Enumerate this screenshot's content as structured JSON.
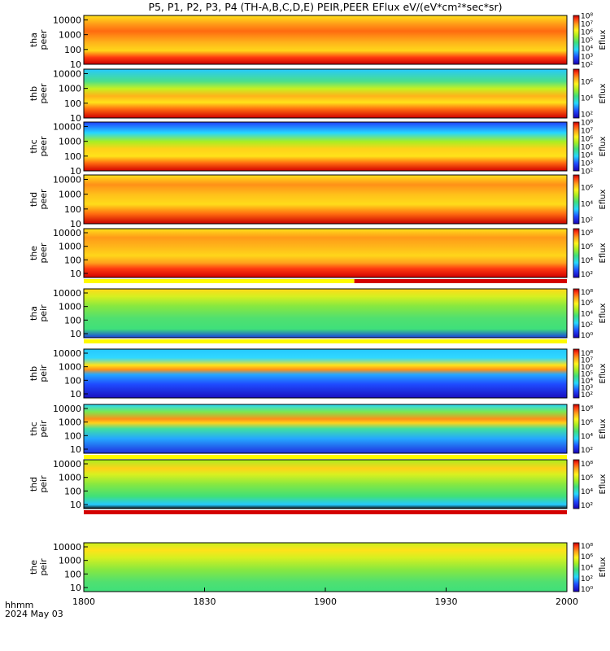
{
  "title": "P5, P1, P2, P3, P4 (TH-A,B,C,D,E) PEIR,PEER EFlux eV/(eV*cm²*sec*sr)",
  "footer": {
    "time_label": "hhmm",
    "date_label": "2024 May 03"
  },
  "chart_data": {
    "type": "heatmap",
    "x_axis": {
      "range": [
        1800,
        2000
      ],
      "ticks": [
        "1800",
        "1830",
        "1900",
        "1930",
        "2000"
      ]
    },
    "y_scale": "log",
    "panels": [
      {
        "probe": "tha",
        "species": "peer",
        "ylabels": [
          "10000",
          "1000",
          "100",
          "10"
        ],
        "ylim": [
          10,
          20000
        ],
        "cbar_label": "Eflux",
        "cbar_ticks": [
          "10⁸",
          "10⁷",
          "10⁶",
          "10⁵",
          "10⁴",
          "10³",
          "10²"
        ],
        "cbar_range": [
          2,
          8
        ],
        "below_bar": []
      },
      {
        "probe": "thb",
        "species": "peer",
        "ylabels": [
          "10000",
          "1000",
          "100",
          "10"
        ],
        "ylim": [
          10,
          20000
        ],
        "cbar_label": "Eflux",
        "cbar_ticks": [
          "10⁶",
          "10⁴",
          "10²"
        ],
        "cbar_range": [
          1.5,
          7.5
        ],
        "below_bar": []
      },
      {
        "probe": "thc",
        "species": "peer",
        "ylabels": [
          "10000",
          "1000",
          "100",
          "10"
        ],
        "ylim": [
          10,
          20000
        ],
        "cbar_label": "Eflux",
        "cbar_ticks": [
          "10⁸",
          "10⁷",
          "10⁶",
          "10⁵",
          "10⁴",
          "10³",
          "10²"
        ],
        "cbar_range": [
          2,
          8
        ],
        "below_bar": []
      },
      {
        "probe": "thd",
        "species": "peer",
        "ylabels": [
          "10000",
          "1000",
          "100",
          "10"
        ],
        "ylim": [
          10,
          20000
        ],
        "cbar_label": "Eflux",
        "cbar_ticks": [
          "10⁶",
          "10⁴",
          "10²"
        ],
        "cbar_range": [
          1.5,
          7.5
        ],
        "below_bar": []
      },
      {
        "probe": "the",
        "species": "peer",
        "ylabels": [
          "10000",
          "1000",
          "100",
          "10"
        ],
        "ylim": [
          5,
          20000
        ],
        "cbar_label": "Eflux",
        "cbar_ticks": [
          "10⁸",
          "10⁶",
          "10⁴",
          "10²"
        ],
        "cbar_range": [
          1.5,
          8.5
        ],
        "below_bar": [
          {
            "from": 1800,
            "to": 1912,
            "color": "#fffa00"
          },
          {
            "from": 1912,
            "to": 2000,
            "color": "#d40000"
          }
        ]
      },
      {
        "probe": "tha",
        "species": "peir",
        "ylabels": [
          "10000",
          "1000",
          "100",
          "10"
        ],
        "ylim": [
          5,
          20000
        ],
        "cbar_label": "Eflux",
        "cbar_ticks": [
          "10⁸",
          "10⁶",
          "10⁴",
          "10²",
          "10⁰"
        ],
        "cbar_range": [
          -0.5,
          8.5
        ],
        "below_bar": [
          {
            "from": 1800,
            "to": 2000,
            "color": "#fffa00"
          }
        ]
      },
      {
        "probe": "thb",
        "species": "peir",
        "ylabels": [
          "10000",
          "1000",
          "100",
          "10"
        ],
        "ylim": [
          5,
          20000
        ],
        "cbar_label": "Eflux",
        "cbar_ticks": [
          "10⁸",
          "10⁷",
          "10⁶",
          "10⁵",
          "10⁴",
          "10³",
          "10²"
        ],
        "cbar_range": [
          1.5,
          8.5
        ],
        "below_bar": []
      },
      {
        "probe": "thc",
        "species": "peir",
        "ylabels": [
          "10000",
          "1000",
          "100",
          "10"
        ],
        "ylim": [
          5,
          20000
        ],
        "cbar_label": "Eflux",
        "cbar_ticks": [
          "10⁸",
          "10⁶",
          "10⁴",
          "10²"
        ],
        "cbar_range": [
          1.5,
          8.5
        ],
        "below_bar": [
          {
            "from": 1800,
            "to": 2000,
            "color": "#fffa00"
          }
        ]
      },
      {
        "probe": "thd",
        "species": "peir",
        "ylabels": [
          "10000",
          "1000",
          "100",
          "10"
        ],
        "ylim": [
          5,
          20000
        ],
        "cbar_label": "Eflux",
        "cbar_ticks": [
          "10⁸",
          "10⁶",
          "10⁴",
          "10²"
        ],
        "cbar_range": [
          1.5,
          8.5
        ],
        "below_bar": [
          {
            "from": 1800,
            "to": 2000,
            "color": "#d40000"
          }
        ]
      },
      {
        "probe": "the",
        "species": "peir",
        "ylabels": [
          "10000",
          "1000",
          "100",
          "10"
        ],
        "ylim": [
          5,
          20000
        ],
        "cbar_label": "Eflux",
        "cbar_ticks": [
          "10⁸",
          "10⁶",
          "10⁴",
          "10²",
          "10⁰"
        ],
        "cbar_range": [
          -0.5,
          8.5
        ],
        "below_bar": []
      }
    ]
  }
}
